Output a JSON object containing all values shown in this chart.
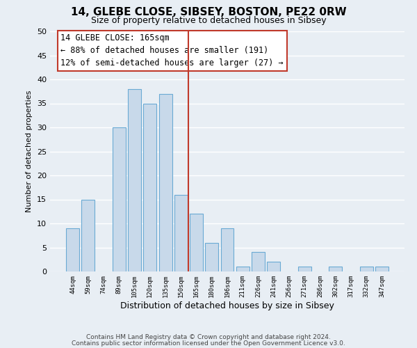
{
  "title": "14, GLEBE CLOSE, SIBSEY, BOSTON, PE22 0RW",
  "subtitle": "Size of property relative to detached houses in Sibsey",
  "xlabel": "Distribution of detached houses by size in Sibsey",
  "ylabel": "Number of detached properties",
  "bin_labels": [
    "44sqm",
    "59sqm",
    "74sqm",
    "89sqm",
    "105sqm",
    "120sqm",
    "135sqm",
    "150sqm",
    "165sqm",
    "180sqm",
    "196sqm",
    "211sqm",
    "226sqm",
    "241sqm",
    "256sqm",
    "271sqm",
    "286sqm",
    "302sqm",
    "317sqm",
    "332sqm",
    "347sqm"
  ],
  "bar_values": [
    9,
    15,
    0,
    30,
    38,
    35,
    37,
    16,
    12,
    6,
    9,
    1,
    4,
    2,
    0,
    1,
    0,
    1,
    0,
    1,
    1
  ],
  "bar_color": "#c8d9ea",
  "bar_edge_color": "#6aaad4",
  "vline_x": 7.5,
  "vline_color": "#c0392b",
  "ann_line1": "14 GLEBE CLOSE: 165sqm",
  "ann_line2": "← 88% of detached houses are smaller (191)",
  "ann_line3": "12% of semi-detached houses are larger (27) →",
  "ylim": [
    0,
    50
  ],
  "yticks": [
    0,
    5,
    10,
    15,
    20,
    25,
    30,
    35,
    40,
    45,
    50
  ],
  "background_color": "#e8eef4",
  "plot_background_color": "#e8eef4",
  "grid_color": "#ffffff",
  "footer_line1": "Contains HM Land Registry data © Crown copyright and database right 2024.",
  "footer_line2": "Contains public sector information licensed under the Open Government Licence v3.0.",
  "title_fontsize": 11,
  "subtitle_fontsize": 9,
  "annotation_fontsize": 8.5,
  "footer_fontsize": 6.5,
  "ylabel_fontsize": 8,
  "xlabel_fontsize": 9
}
